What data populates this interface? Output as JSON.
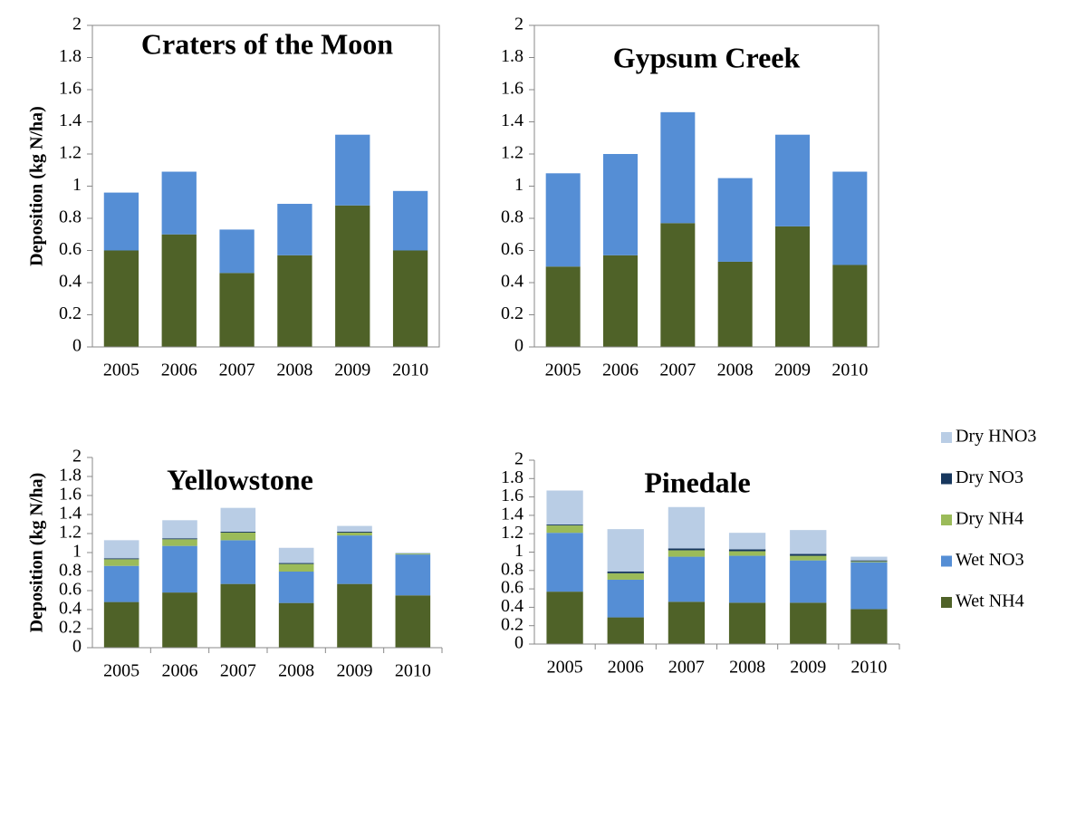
{
  "chart_data": [
    {
      "type": "bar",
      "stacked": true,
      "title": "Craters of the Moon",
      "ylabel": "Deposition (kg N/ha)",
      "frame": true,
      "category_ticks": false,
      "categories": [
        "2005",
        "2006",
        "2007",
        "2008",
        "2009",
        "2010"
      ],
      "series": [
        {
          "name": "Wet NH4",
          "color": "#4f6228",
          "values": [
            0.6,
            0.7,
            0.46,
            0.57,
            0.88,
            0.6
          ]
        },
        {
          "name": "Wet NO3",
          "color": "#558ed5",
          "values": [
            0.36,
            0.39,
            0.27,
            0.32,
            0.44,
            0.37
          ]
        }
      ],
      "ylim": [
        0,
        2
      ],
      "yticks": [
        0,
        0.2,
        0.4,
        0.6,
        0.8,
        1,
        1.2,
        1.4,
        1.6,
        1.8,
        2
      ]
    },
    {
      "type": "bar",
      "stacked": true,
      "title": "Gypsum Creek",
      "frame": true,
      "category_ticks": false,
      "categories": [
        "2005",
        "2006",
        "2007",
        "2008",
        "2009",
        "2010"
      ],
      "series": [
        {
          "name": "Wet NH4",
          "color": "#4f6228",
          "values": [
            0.5,
            0.57,
            0.77,
            0.53,
            0.75,
            0.51
          ]
        },
        {
          "name": "Wet NO3",
          "color": "#558ed5",
          "values": [
            0.58,
            0.63,
            0.69,
            0.52,
            0.57,
            0.58
          ]
        }
      ],
      "ylim": [
        0,
        2
      ],
      "yticks": [
        0,
        0.2,
        0.4,
        0.6,
        0.8,
        1,
        1.2,
        1.4,
        1.6,
        1.8,
        2
      ]
    },
    {
      "type": "bar",
      "stacked": true,
      "title": "Yellowstone",
      "ylabel": "Deposition (kg N/ha)",
      "frame": false,
      "category_ticks": true,
      "categories": [
        "2005",
        "2006",
        "2007",
        "2008",
        "2009",
        "2010"
      ],
      "series": [
        {
          "name": "Wet NH4",
          "color": "#4f6228",
          "values": [
            0.48,
            0.58,
            0.67,
            0.47,
            0.67,
            0.55
          ]
        },
        {
          "name": "Wet NO3",
          "color": "#558ed5",
          "values": [
            0.38,
            0.49,
            0.46,
            0.33,
            0.51,
            0.43
          ]
        },
        {
          "name": "Dry NH4",
          "color": "#9bbb59",
          "values": [
            0.07,
            0.07,
            0.08,
            0.08,
            0.03,
            0.01
          ]
        },
        {
          "name": "Dry NO3",
          "color": "#17375e",
          "values": [
            0.01,
            0.01,
            0.01,
            0.01,
            0.01,
            0.0
          ]
        },
        {
          "name": "Dry HNO3",
          "color": "#b9cde5",
          "values": [
            0.19,
            0.19,
            0.25,
            0.16,
            0.06,
            0.01
          ]
        }
      ],
      "ylim": [
        0,
        2
      ],
      "yticks": [
        0,
        0.2,
        0.4,
        0.6,
        0.8,
        1,
        1.2,
        1.4,
        1.6,
        1.8,
        2
      ]
    },
    {
      "type": "bar",
      "stacked": true,
      "title": "Pinedale",
      "frame": false,
      "category_ticks": true,
      "categories": [
        "2005",
        "2006",
        "2007",
        "2008",
        "2009",
        "2010"
      ],
      "series": [
        {
          "name": "Wet NH4",
          "color": "#4f6228",
          "values": [
            0.57,
            0.29,
            0.46,
            0.45,
            0.45,
            0.38
          ]
        },
        {
          "name": "Wet NO3",
          "color": "#558ed5",
          "values": [
            0.64,
            0.41,
            0.49,
            0.51,
            0.46,
            0.51
          ]
        },
        {
          "name": "Dry NH4",
          "color": "#9bbb59",
          "values": [
            0.08,
            0.07,
            0.07,
            0.05,
            0.05,
            0.01
          ]
        },
        {
          "name": "Dry NO3",
          "color": "#17375e",
          "values": [
            0.01,
            0.02,
            0.02,
            0.02,
            0.02,
            0.01
          ]
        },
        {
          "name": "Dry HNO3",
          "color": "#b9cde5",
          "values": [
            0.37,
            0.46,
            0.45,
            0.18,
            0.26,
            0.04
          ]
        }
      ],
      "ylim": [
        0,
        2
      ],
      "yticks": [
        0,
        0.2,
        0.4,
        0.6,
        0.8,
        1,
        1.2,
        1.4,
        1.6,
        1.8,
        2
      ]
    }
  ]
}
